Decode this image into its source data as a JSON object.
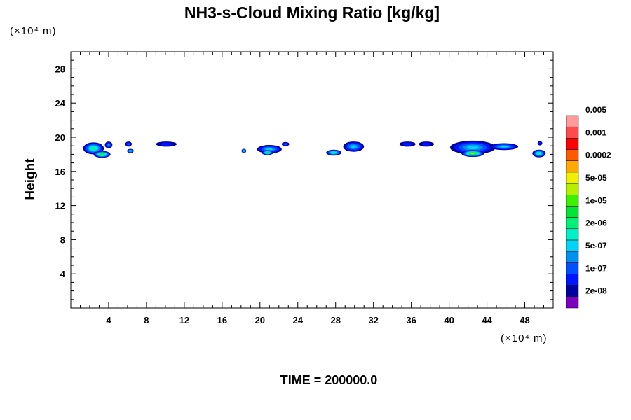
{
  "chart_data": {
    "type": "heatmap",
    "title": "NH3-s-Cloud Mixing Ratio [kg/kg]",
    "ylabel": "Height",
    "xlabel": "",
    "x_unit": "(×10⁴ m)",
    "y_unit": "(×10⁴ m)",
    "xlim": [
      0,
      51
    ],
    "ylim": [
      0,
      30
    ],
    "x_ticks": [
      4,
      8,
      12,
      16,
      20,
      24,
      28,
      32,
      36,
      40,
      44,
      48
    ],
    "y_ticks": [
      4,
      8,
      12,
      16,
      20,
      24,
      28
    ],
    "grid": false,
    "colorbar": {
      "placement": "right",
      "colors": [
        "#7f00bf",
        "#0000a0",
        "#0014ff",
        "#0050ff",
        "#0090f0",
        "#00d4f5",
        "#00f0c8",
        "#00f078",
        "#00e632",
        "#3cf000",
        "#b4f000",
        "#f0f000",
        "#ffaa00",
        "#ff5a00",
        "#ff0000",
        "#ff4b4b",
        "#ff9b9b"
      ],
      "labels": [
        "2e-08",
        "1e-07",
        "5e-07",
        "2e-06",
        "1e-05",
        "5e-05",
        "0.0002",
        "0.001",
        "0.005"
      ]
    },
    "cloud_cells": [
      {
        "x": 2.4,
        "y": 18.7,
        "w": 2.2,
        "h": 1.4,
        "level": 6
      },
      {
        "x": 3.3,
        "y": 18.0,
        "w": 1.8,
        "h": 0.8,
        "level": 8
      },
      {
        "x": 4.0,
        "y": 19.1,
        "w": 0.8,
        "h": 0.8,
        "level": 3
      },
      {
        "x": 6.1,
        "y": 19.2,
        "w": 0.7,
        "h": 0.6,
        "level": 2
      },
      {
        "x": 6.3,
        "y": 18.4,
        "w": 0.7,
        "h": 0.5,
        "level": 5
      },
      {
        "x": 10.1,
        "y": 19.2,
        "w": 2.2,
        "h": 0.6,
        "level": 1
      },
      {
        "x": 18.3,
        "y": 18.4,
        "w": 0.5,
        "h": 0.5,
        "level": 5
      },
      {
        "x": 21.0,
        "y": 18.6,
        "w": 2.6,
        "h": 1.0,
        "level": 4
      },
      {
        "x": 20.8,
        "y": 18.2,
        "w": 1.2,
        "h": 0.6,
        "level": 7
      },
      {
        "x": 22.7,
        "y": 19.2,
        "w": 0.8,
        "h": 0.5,
        "level": 2
      },
      {
        "x": 27.8,
        "y": 18.2,
        "w": 1.6,
        "h": 0.7,
        "level": 6
      },
      {
        "x": 29.9,
        "y": 18.9,
        "w": 2.2,
        "h": 1.2,
        "level": 4
      },
      {
        "x": 35.6,
        "y": 19.2,
        "w": 1.7,
        "h": 0.6,
        "level": 1
      },
      {
        "x": 37.6,
        "y": 19.2,
        "w": 1.6,
        "h": 0.6,
        "level": 1
      },
      {
        "x": 42.5,
        "y": 18.8,
        "w": 4.8,
        "h": 1.6,
        "level": 4
      },
      {
        "x": 42.5,
        "y": 18.1,
        "w": 2.4,
        "h": 0.8,
        "level": 9
      },
      {
        "x": 45.8,
        "y": 18.9,
        "w": 3.0,
        "h": 0.8,
        "level": 4
      },
      {
        "x": 49.5,
        "y": 18.1,
        "w": 1.4,
        "h": 0.9,
        "level": 6
      },
      {
        "x": 49.6,
        "y": 19.3,
        "w": 0.5,
        "h": 0.5,
        "level": 1
      }
    ]
  },
  "footer": {
    "time_label": "TIME = 200000.0"
  }
}
